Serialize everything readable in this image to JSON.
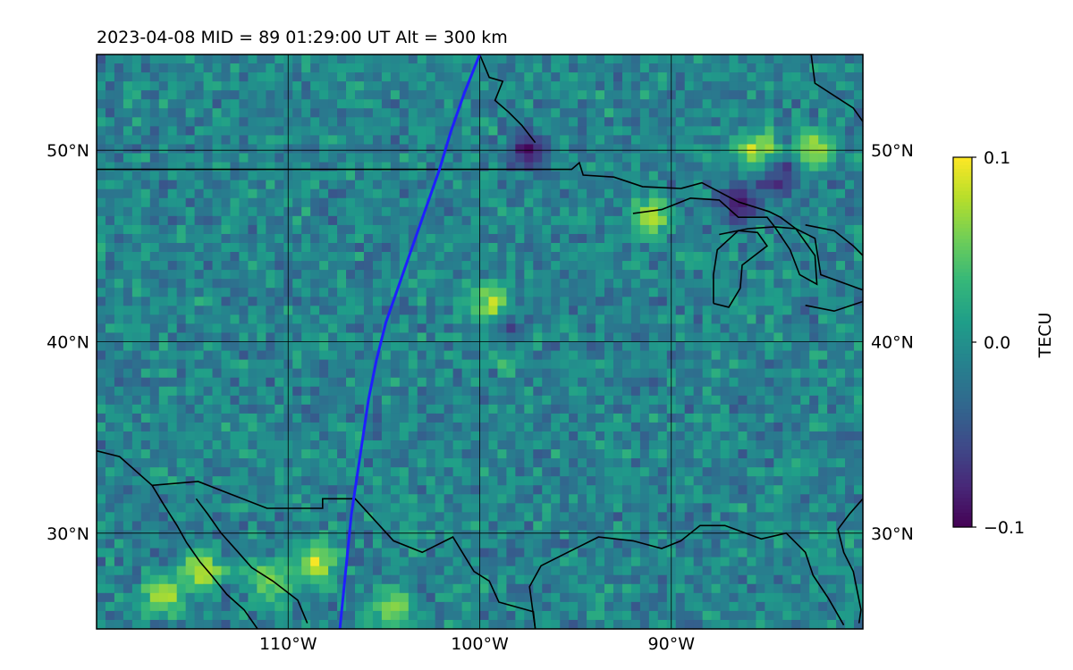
{
  "chart_data": {
    "type": "heatmap",
    "title": "2023-04-08  MID =  89    01:29:00  UT  Alt = 300 km",
    "map": {
      "lon_range": [
        -120,
        -80
      ],
      "lat_range": [
        25,
        55
      ],
      "grid": true,
      "lon_ticks": [
        {
          "value": -110,
          "label": "110°W"
        },
        {
          "value": -100,
          "label": "100°W"
        },
        {
          "value": -90,
          "label": "90°W"
        }
      ],
      "lat_ticks": [
        {
          "value": 50,
          "label": "50°N"
        },
        {
          "value": 40,
          "label": "40°N"
        },
        {
          "value": 30,
          "label": "30°N"
        }
      ],
      "grid_lons": [
        -110,
        -100,
        -90
      ],
      "grid_lats": [
        50,
        40,
        30
      ]
    },
    "colorbar": {
      "label": "TECU",
      "vmin": -0.1,
      "vmax": 0.1,
      "colormap": "viridis",
      "ticks": [
        {
          "value": 0.1,
          "label": "0.1"
        },
        {
          "value": 0.0,
          "label": "0.0"
        },
        {
          "value": -0.1,
          "label": "−0.1"
        }
      ]
    },
    "path": {
      "color": "#1f1fff",
      "points": [
        [
          -100.0,
          55.0
        ],
        [
          -100.8,
          53.0
        ],
        [
          -101.5,
          51.0
        ],
        [
          -102.1,
          49.0
        ],
        [
          -102.8,
          47.0
        ],
        [
          -103.5,
          45.0
        ],
        [
          -104.2,
          43.0
        ],
        [
          -104.9,
          41.0
        ],
        [
          -105.4,
          39.0
        ],
        [
          -105.8,
          37.0
        ],
        [
          -106.1,
          35.0
        ],
        [
          -106.4,
          33.0
        ],
        [
          -106.7,
          31.0
        ],
        [
          -106.9,
          29.0
        ],
        [
          -107.1,
          27.0
        ],
        [
          -107.3,
          25.0
        ]
      ]
    },
    "field": {
      "grid_cols": 86,
      "grid_rows": 64,
      "background_mean": -0.01,
      "hotspots": [
        {
          "lon": -116.5,
          "lat": 26.8,
          "value": 0.1
        },
        {
          "lon": -114.5,
          "lat": 28.0,
          "value": 0.1
        },
        {
          "lon": -111.0,
          "lat": 27.5,
          "value": 0.08
        },
        {
          "lon": -108.5,
          "lat": 28.5,
          "value": 0.1
        },
        {
          "lon": -104.5,
          "lat": 26.0,
          "value": 0.08
        },
        {
          "lon": -98.5,
          "lat": 39.8,
          "value": 0.09
        },
        {
          "lon": -99.5,
          "lat": 42.0,
          "value": 0.09
        },
        {
          "lon": -82.5,
          "lat": 50.0,
          "value": 0.1
        },
        {
          "lon": -85.5,
          "lat": 50.0,
          "value": 0.1
        },
        {
          "lon": -91.0,
          "lat": 46.5,
          "value": 0.09
        },
        {
          "lon": -97.5,
          "lat": 49.9,
          "value": -0.1
        },
        {
          "lon": -86.5,
          "lat": 47.3,
          "value": -0.1
        },
        {
          "lon": -84.5,
          "lat": 48.5,
          "value": -0.09
        },
        {
          "lon": -98.5,
          "lat": 40.3,
          "value": -0.08
        }
      ]
    },
    "borders": [
      [
        [
          -120,
          49.0
        ],
        [
          -95.2,
          49.0
        ],
        [
          -94.8,
          49.35
        ],
        [
          -94.6,
          48.7
        ],
        [
          -93,
          48.6
        ],
        [
          -91.5,
          48.1
        ],
        [
          -89.5,
          48.0
        ],
        [
          -88.4,
          48.3
        ],
        [
          -86.5,
          47.3
        ],
        [
          -84.9,
          46.8
        ],
        [
          -84.3,
          46.5
        ],
        [
          -83.5,
          45.9
        ],
        [
          -82.5,
          45.4
        ],
        [
          -82.2,
          43.5
        ],
        [
          -80,
          42.7
        ]
      ],
      [
        [
          -120,
          34.3
        ],
        [
          -118.8,
          34.0
        ],
        [
          -117.1,
          32.5
        ],
        [
          -114.7,
          32.7
        ],
        [
          -111.1,
          31.3
        ],
        [
          -108.2,
          31.3
        ],
        [
          -108.2,
          31.8
        ],
        [
          -106.5,
          31.8
        ],
        [
          -104.5,
          29.6
        ],
        [
          -103.0,
          29.0
        ],
        [
          -101.4,
          29.8
        ],
        [
          -100.3,
          28.0
        ],
        [
          -99.5,
          27.5
        ],
        [
          -99.0,
          26.4
        ],
        [
          -97.2,
          25.9
        ],
        [
          -97.1,
          25.0
        ]
      ],
      [
        [
          -117.1,
          32.5
        ],
        [
          -116.5,
          31.5
        ],
        [
          -115.8,
          30.4
        ],
        [
          -115.3,
          29.5
        ],
        [
          -114.6,
          28.5
        ],
        [
          -114.0,
          27.8
        ],
        [
          -113.2,
          26.8
        ],
        [
          -112.3,
          26.0
        ],
        [
          -111.6,
          25.0
        ]
      ],
      [
        [
          -114.8,
          31.8
        ],
        [
          -114.2,
          31.0
        ],
        [
          -113.5,
          30.0
        ],
        [
          -112.6,
          29.0
        ],
        [
          -111.9,
          28.2
        ],
        [
          -110.8,
          27.5
        ],
        [
          -109.5,
          26.5
        ],
        [
          -109.0,
          25.3
        ]
      ],
      [
        [
          -97.1,
          25.0
        ],
        [
          -97.4,
          27.2
        ],
        [
          -96.8,
          28.3
        ],
        [
          -94.8,
          29.3
        ],
        [
          -93.8,
          29.8
        ],
        [
          -92.0,
          29.6
        ],
        [
          -90.5,
          29.2
        ],
        [
          -89.5,
          29.6
        ],
        [
          -88.5,
          30.4
        ],
        [
          -87.2,
          30.4
        ],
        [
          -85.3,
          29.7
        ],
        [
          -84.0,
          30.0
        ],
        [
          -83.0,
          29.0
        ],
        [
          -82.6,
          27.8
        ],
        [
          -81.8,
          26.6
        ],
        [
          -81.0,
          25.2
        ]
      ],
      [
        [
          -80.0,
          31.8
        ],
        [
          -80.7,
          31.0
        ],
        [
          -81.3,
          30.2
        ],
        [
          -81.0,
          29.0
        ],
        [
          -80.5,
          28.0
        ],
        [
          -80.3,
          27.0
        ],
        [
          -80.1,
          26.0
        ],
        [
          -80.2,
          25.3
        ]
      ],
      [
        [
          -92.0,
          46.7
        ],
        [
          -90.5,
          46.9
        ],
        [
          -89.0,
          47.5
        ],
        [
          -87.5,
          47.4
        ],
        [
          -86.5,
          46.5
        ],
        [
          -85.0,
          46.5
        ],
        [
          -84.6,
          46.0
        ],
        [
          -86.0,
          45.9
        ],
        [
          -87.5,
          45.6
        ]
      ],
      [
        [
          -87.8,
          42.0
        ],
        [
          -87.8,
          43.5
        ],
        [
          -87.6,
          44.8
        ],
        [
          -86.5,
          45.8
        ],
        [
          -85.5,
          45.7
        ],
        [
          -85.0,
          45.0
        ],
        [
          -86.3,
          44.0
        ],
        [
          -86.4,
          42.8
        ],
        [
          -87.0,
          41.8
        ],
        [
          -87.8,
          42.0
        ]
      ],
      [
        [
          -84.6,
          46.0
        ],
        [
          -83.5,
          45.9
        ],
        [
          -82.5,
          44.5
        ],
        [
          -82.4,
          43.0
        ],
        [
          -83.3,
          43.5
        ],
        [
          -83.8,
          44.8
        ],
        [
          -84.6,
          46.0
        ]
      ],
      [
        [
          -83.0,
          46.1
        ],
        [
          -81.5,
          45.8
        ],
        [
          -80.5,
          45.0
        ],
        [
          -80.0,
          44.5
        ]
      ],
      [
        [
          -83.0,
          41.9
        ],
        [
          -81.5,
          41.6
        ],
        [
          -80.0,
          42.1
        ]
      ],
      [
        [
          -100.0,
          55.0
        ],
        [
          -99.5,
          53.8
        ],
        [
          -98.8,
          53.6
        ],
        [
          -99.2,
          52.6
        ],
        [
          -98.5,
          52.0
        ],
        [
          -97.8,
          51.3
        ],
        [
          -97.1,
          50.4
        ]
      ],
      [
        [
          -82.7,
          55.0
        ],
        [
          -82.5,
          53.5
        ],
        [
          -80.5,
          52.2
        ],
        [
          -80,
          51.5
        ]
      ]
    ]
  }
}
